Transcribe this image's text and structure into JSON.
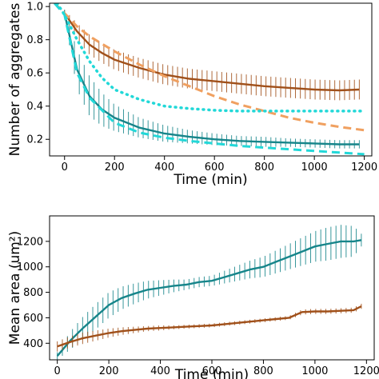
{
  "chart_data": [
    {
      "type": "line",
      "xlabel": "Time (min)",
      "ylabel": "Number of aggregates",
      "xlim": [
        -60,
        1230
      ],
      "ylim": [
        0.1,
        1.02
      ],
      "xticks": [
        0,
        200,
        400,
        600,
        800,
        1000,
        1200
      ],
      "yticks": [
        0.2,
        0.4,
        0.6,
        0.8,
        1.0
      ],
      "ytick_labels": [
        "0.2",
        "0.4",
        "0.6",
        "0.8",
        "1.0"
      ],
      "grid": false,
      "series": [
        {
          "style": "errorbar-line",
          "color": "#a0501a",
          "x": [
            0,
            50,
            100,
            150,
            200,
            300,
            400,
            500,
            600,
            700,
            800,
            900,
            1000,
            1100,
            1180
          ],
          "y": [
            0.96,
            0.85,
            0.77,
            0.72,
            0.68,
            0.63,
            0.59,
            0.565,
            0.55,
            0.535,
            0.52,
            0.51,
            0.5,
            0.495,
            0.5
          ],
          "err": [
            0.02,
            0.05,
            0.06,
            0.06,
            0.06,
            0.06,
            0.06,
            0.06,
            0.06,
            0.06,
            0.06,
            0.06,
            0.06,
            0.06,
            0.06
          ]
        },
        {
          "style": "errorbar-line",
          "color": "#16858a",
          "x": [
            0,
            50,
            100,
            150,
            200,
            300,
            400,
            500,
            600,
            700,
            800,
            900,
            1000,
            1100,
            1180
          ],
          "y": [
            0.96,
            0.62,
            0.46,
            0.38,
            0.33,
            0.27,
            0.235,
            0.215,
            0.2,
            0.19,
            0.185,
            0.18,
            0.175,
            0.17,
            0.17
          ],
          "err": [
            0.02,
            0.12,
            0.12,
            0.1,
            0.08,
            0.06,
            0.05,
            0.04,
            0.035,
            0.03,
            0.03,
            0.025,
            0.025,
            0.025,
            0.025
          ]
        },
        {
          "style": "dashed",
          "color": "#f0a060",
          "x": [
            -40,
            0,
            50,
            100,
            200,
            300,
            400,
            500,
            600,
            700,
            800,
            900,
            1000,
            1100,
            1200
          ],
          "y": [
            1.02,
            0.96,
            0.88,
            0.82,
            0.73,
            0.65,
            0.58,
            0.52,
            0.46,
            0.41,
            0.37,
            0.33,
            0.3,
            0.275,
            0.255
          ]
        },
        {
          "style": "dotted",
          "color": "#22d8d8",
          "x": [
            -30,
            0,
            50,
            100,
            150,
            200,
            300,
            400,
            500,
            600,
            700,
            800,
            900,
            1000,
            1100,
            1200
          ],
          "y": [
            1.02,
            0.95,
            0.8,
            0.67,
            0.57,
            0.5,
            0.44,
            0.4,
            0.385,
            0.375,
            0.37,
            0.37,
            0.37,
            0.37,
            0.37,
            0.37
          ]
        },
        {
          "style": "dashed",
          "color": "#22d8d8",
          "x": [
            -40,
            0,
            50,
            100,
            200,
            300,
            400,
            500,
            600,
            700,
            800,
            900,
            1000,
            1100,
            1200
          ],
          "y": [
            1.02,
            0.95,
            0.6,
            0.45,
            0.3,
            0.24,
            0.21,
            0.19,
            0.175,
            0.16,
            0.15,
            0.14,
            0.13,
            0.12,
            0.11
          ]
        }
      ]
    },
    {
      "type": "line",
      "xlabel": "Time (min)",
      "ylabel": "Mean area (um²)",
      "xlim": [
        -30,
        1230
      ],
      "ylim": [
        270,
        1400
      ],
      "xticks": [
        0,
        200,
        400,
        600,
        800,
        1000,
        1200
      ],
      "yticks": [
        400,
        600,
        800,
        1000,
        1200
      ],
      "grid": false,
      "series": [
        {
          "style": "errorbar-line",
          "color": "#16858a",
          "x": [
            0,
            50,
            100,
            150,
            200,
            250,
            300,
            350,
            400,
            450,
            500,
            550,
            600,
            650,
            700,
            750,
            800,
            850,
            900,
            950,
            1000,
            1050,
            1100,
            1150,
            1180
          ],
          "y": [
            300,
            420,
            520,
            610,
            700,
            755,
            790,
            820,
            835,
            850,
            860,
            880,
            890,
            920,
            950,
            980,
            1000,
            1040,
            1080,
            1120,
            1160,
            1180,
            1200,
            1200,
            1210
          ],
          "err": [
            30,
            70,
            90,
            100,
            100,
            90,
            80,
            70,
            60,
            50,
            40,
            40,
            40,
            50,
            60,
            70,
            80,
            90,
            100,
            110,
            120,
            130,
            130,
            120,
            50
          ]
        },
        {
          "style": "errorbar-line",
          "color": "#a0501a",
          "x": [
            0,
            50,
            100,
            150,
            200,
            250,
            300,
            350,
            400,
            450,
            500,
            550,
            600,
            650,
            700,
            750,
            800,
            850,
            900,
            950,
            1000,
            1050,
            1100,
            1150,
            1180
          ],
          "y": [
            375,
            410,
            440,
            460,
            480,
            495,
            505,
            515,
            520,
            525,
            530,
            535,
            540,
            550,
            560,
            570,
            580,
            590,
            600,
            645,
            650,
            650,
            655,
            660,
            690
          ],
          "err": [
            40,
            45,
            45,
            40,
            35,
            30,
            25,
            20,
            20,
            15,
            15,
            15,
            15,
            15,
            15,
            15,
            15,
            15,
            15,
            20,
            20,
            20,
            20,
            20,
            20
          ]
        }
      ]
    }
  ]
}
